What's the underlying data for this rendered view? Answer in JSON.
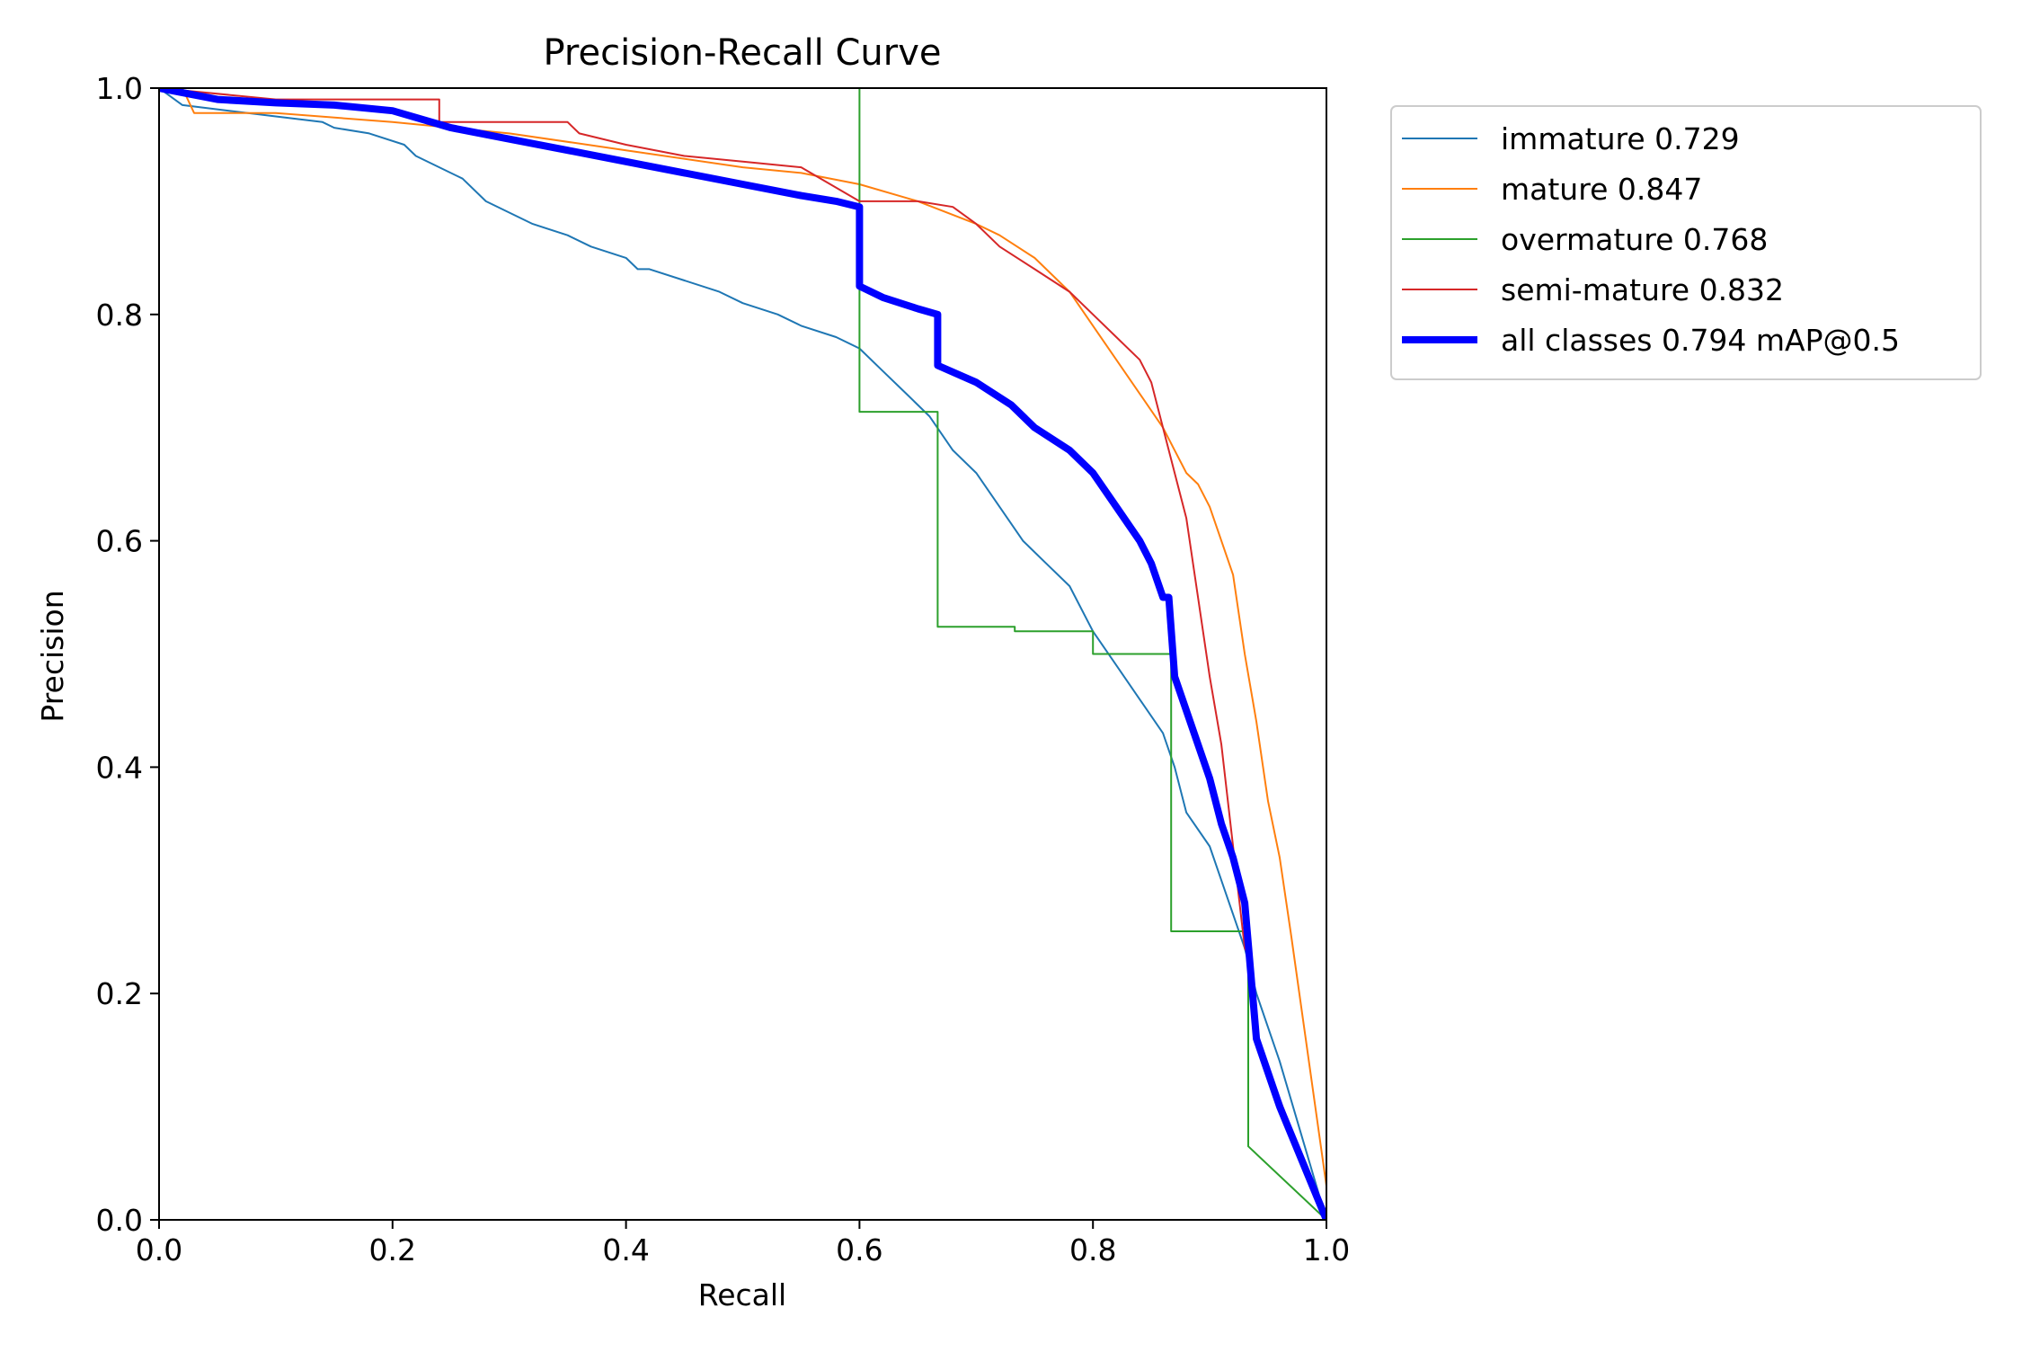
{
  "chart_data": {
    "type": "line",
    "title": "Precision-Recall Curve",
    "xlabel": "Recall",
    "ylabel": "Precision",
    "xlim": [
      0,
      1
    ],
    "ylim": [
      0,
      1
    ],
    "xticks": [
      "0.0",
      "0.2",
      "0.4",
      "0.6",
      "0.8",
      "1.0"
    ],
    "yticks": [
      "0.0",
      "0.2",
      "0.4",
      "0.6",
      "0.8",
      "1.0"
    ],
    "grid": false,
    "legend_position": "outside upper-right",
    "series": [
      {
        "name": "immature 0.729",
        "color": "#1f77b4",
        "x": [
          0.0,
          0.02,
          0.06,
          0.1,
          0.14,
          0.15,
          0.18,
          0.21,
          0.22,
          0.24,
          0.26,
          0.28,
          0.3,
          0.32,
          0.35,
          0.37,
          0.4,
          0.41,
          0.42,
          0.45,
          0.48,
          0.5,
          0.53,
          0.55,
          0.58,
          0.6,
          0.62,
          0.64,
          0.66,
          0.68,
          0.7,
          0.72,
          0.74,
          0.76,
          0.78,
          0.8,
          0.82,
          0.84,
          0.86,
          0.87,
          0.88,
          0.9,
          0.91,
          0.92,
          0.93,
          0.94,
          0.96,
          1.0
        ],
        "y": [
          1.0,
          0.985,
          0.98,
          0.975,
          0.97,
          0.965,
          0.96,
          0.95,
          0.94,
          0.93,
          0.92,
          0.9,
          0.89,
          0.88,
          0.87,
          0.86,
          0.85,
          0.84,
          0.84,
          0.83,
          0.82,
          0.81,
          0.8,
          0.79,
          0.78,
          0.77,
          0.75,
          0.73,
          0.71,
          0.68,
          0.66,
          0.63,
          0.6,
          0.58,
          0.56,
          0.52,
          0.49,
          0.46,
          0.43,
          0.4,
          0.36,
          0.33,
          0.3,
          0.27,
          0.24,
          0.2,
          0.14,
          0.0
        ]
      },
      {
        "name": "mature 0.847",
        "color": "#ff7f0e",
        "x": [
          0.0,
          0.02,
          0.03,
          0.1,
          0.2,
          0.3,
          0.4,
          0.5,
          0.55,
          0.6,
          0.65,
          0.7,
          0.72,
          0.75,
          0.78,
          0.8,
          0.82,
          0.84,
          0.86,
          0.87,
          0.88,
          0.89,
          0.9,
          0.91,
          0.92,
          0.93,
          0.94,
          0.95,
          0.96,
          0.97,
          1.0
        ],
        "y": [
          1.0,
          1.0,
          0.978,
          0.978,
          0.97,
          0.96,
          0.945,
          0.93,
          0.925,
          0.915,
          0.9,
          0.88,
          0.87,
          0.85,
          0.82,
          0.79,
          0.76,
          0.73,
          0.7,
          0.68,
          0.66,
          0.65,
          0.63,
          0.6,
          0.57,
          0.5,
          0.44,
          0.37,
          0.32,
          0.25,
          0.03
        ]
      },
      {
        "name": "overmature 0.768",
        "color": "#2ca02c",
        "x": [
          0.0,
          0.6,
          0.6,
          0.6,
          0.667,
          0.667,
          0.733,
          0.733,
          0.8,
          0.8,
          0.867,
          0.867,
          0.933,
          0.933,
          1.0
        ],
        "y": [
          1.0,
          1.0,
          1.0,
          0.714,
          0.714,
          0.524,
          0.524,
          0.52,
          0.52,
          0.5,
          0.5,
          0.255,
          0.255,
          0.065,
          0.0
        ]
      },
      {
        "name": "semi-mature 0.832",
        "color": "#d62728",
        "x": [
          0.0,
          0.1,
          0.24,
          0.24,
          0.35,
          0.36,
          0.4,
          0.45,
          0.5,
          0.55,
          0.6,
          0.65,
          0.68,
          0.7,
          0.72,
          0.75,
          0.78,
          0.8,
          0.82,
          0.84,
          0.85,
          0.86,
          0.87,
          0.88,
          0.89,
          0.9,
          0.91,
          0.92,
          0.93,
          0.935,
          0.94,
          1.0
        ],
        "y": [
          1.0,
          0.99,
          0.99,
          0.97,
          0.97,
          0.96,
          0.95,
          0.94,
          0.935,
          0.93,
          0.9,
          0.9,
          0.895,
          0.88,
          0.86,
          0.84,
          0.82,
          0.8,
          0.78,
          0.76,
          0.74,
          0.7,
          0.66,
          0.62,
          0.55,
          0.48,
          0.42,
          0.33,
          0.24,
          0.23,
          0.16,
          0.0
        ]
      },
      {
        "name": "all classes 0.794 mAP@0.5",
        "color": "#0000ff",
        "width": "thick",
        "x": [
          0.0,
          0.05,
          0.1,
          0.15,
          0.2,
          0.25,
          0.3,
          0.35,
          0.4,
          0.45,
          0.5,
          0.55,
          0.58,
          0.6,
          0.6,
          0.62,
          0.65,
          0.667,
          0.667,
          0.7,
          0.73,
          0.75,
          0.78,
          0.8,
          0.82,
          0.84,
          0.85,
          0.86,
          0.865,
          0.87,
          0.88,
          0.89,
          0.9,
          0.91,
          0.92,
          0.925,
          0.93,
          0.935,
          0.94,
          0.96,
          1.0
        ],
        "y": [
          1.0,
          0.99,
          0.987,
          0.985,
          0.98,
          0.965,
          0.955,
          0.945,
          0.935,
          0.925,
          0.915,
          0.905,
          0.9,
          0.895,
          0.825,
          0.815,
          0.805,
          0.8,
          0.755,
          0.74,
          0.72,
          0.7,
          0.68,
          0.66,
          0.63,
          0.6,
          0.58,
          0.55,
          0.55,
          0.48,
          0.45,
          0.42,
          0.39,
          0.35,
          0.32,
          0.3,
          0.28,
          0.22,
          0.16,
          0.1,
          0.0
        ]
      }
    ]
  }
}
